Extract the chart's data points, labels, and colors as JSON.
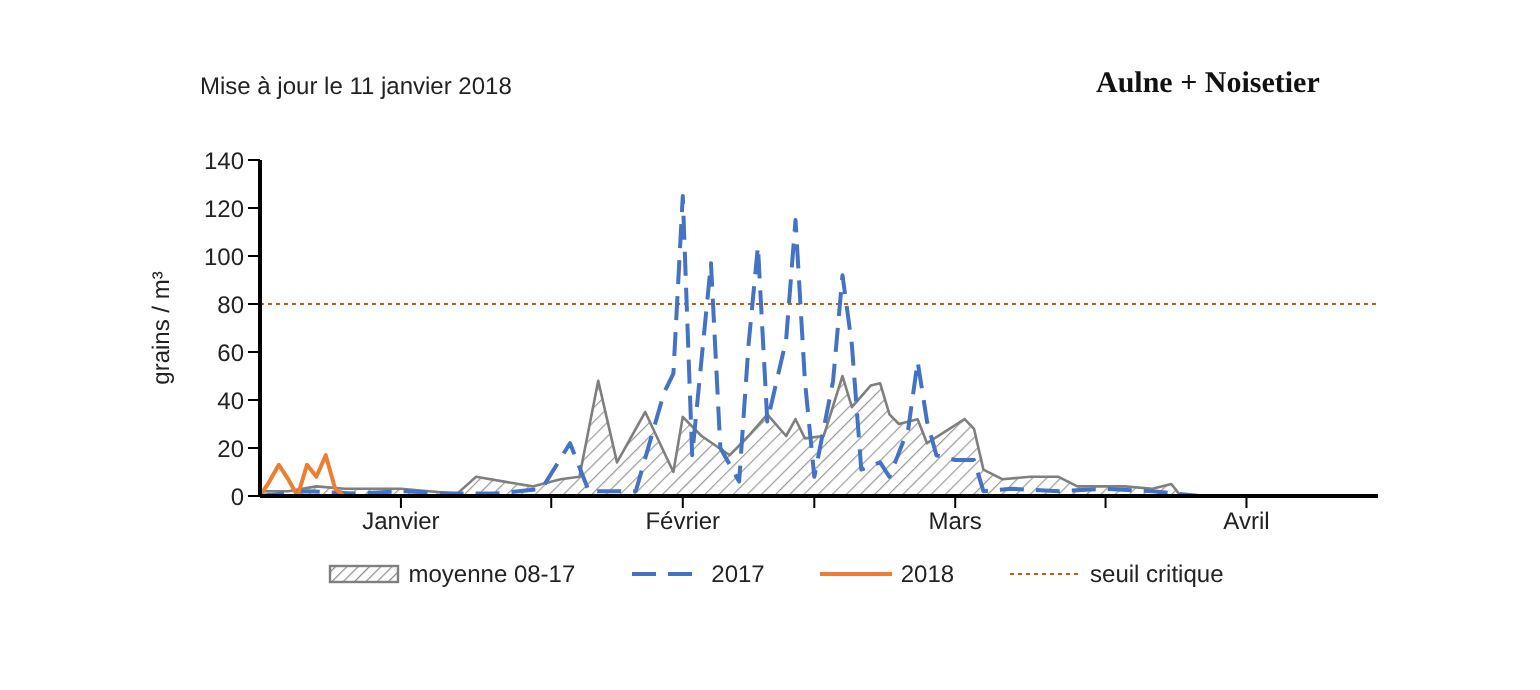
{
  "chart_data": {
    "type": "area",
    "title": "Aulne + Noisetier",
    "subtitle": "Mise à jour le 11 janvier 2018",
    "ylabel": "grains / m³",
    "xlim": [
      "--01-01",
      "--04-30"
    ],
    "xticks": [
      {
        "value": "--01-16",
        "label": "Janvier"
      },
      {
        "value": "--02-01",
        "label": null
      },
      {
        "value": "--02-15",
        "label": "Février"
      },
      {
        "value": "--03-01",
        "label": null
      },
      {
        "value": "--03-16",
        "label": "Mars"
      },
      {
        "value": "--04-01",
        "label": null
      },
      {
        "value": "--04-16",
        "label": "Avril"
      }
    ],
    "ylim": [
      0,
      140
    ],
    "yticks": [
      0,
      20,
      40,
      60,
      80,
      100,
      120,
      140
    ],
    "series": [
      {
        "name": "moyenne 08-17",
        "color": "#7f7f7f",
        "x": [
          "--01-01",
          "--01-04",
          "--01-07",
          "--01-10",
          "--01-13",
          "--01-16",
          "--01-19",
          "--01-22",
          "--01-24",
          "--01-27",
          "--01-30",
          "--02-02",
          "--02-04",
          "--02-06",
          "--02-08",
          "--02-11",
          "--02-14",
          "--02-15",
          "--02-17",
          "--02-20",
          "--02-22",
          "--02-24",
          "--02-26",
          "--02-27",
          "--02-28",
          "--03-02",
          "--03-04",
          "--03-05",
          "--03-07",
          "--03-08",
          "--03-09",
          "--03-10",
          "--03-12",
          "--03-13",
          "--03-15",
          "--03-17",
          "--03-18",
          "--03-19",
          "--03-21",
          "--03-24",
          "--03-27",
          "--03-29",
          "--04-03",
          "--04-06",
          "--04-08",
          "--04-09",
          "--04-11",
          "--04-30"
        ],
        "values": [
          2,
          2,
          4,
          3,
          3,
          3,
          2,
          1,
          8,
          6,
          4,
          7,
          8,
          48,
          14,
          35,
          10,
          33,
          25,
          17,
          25,
          34,
          25,
          32,
          24,
          25,
          50,
          37,
          46,
          47,
          34,
          30,
          32,
          22,
          27,
          32,
          28,
          11,
          7,
          8,
          8,
          4,
          4,
          3,
          5,
          0,
          0,
          0
        ]
      },
      {
        "name": "2017",
        "type": "line",
        "line_style": "dashed",
        "color": "#4472c4",
        "x": [
          "--01-01",
          "--01-06",
          "--01-11",
          "--01-16",
          "--01-21",
          "--01-26",
          "--01-31",
          "--02-03",
          "--02-05",
          "--02-10",
          "--02-13",
          "--02-14",
          "--02-15",
          "--02-16",
          "--02-18",
          "--02-19",
          "--02-21",
          "--02-22",
          "--02-23",
          "--02-24",
          "--02-25",
          "--02-26",
          "--02-27",
          "--02-28",
          "--03-01",
          "--03-03",
          "--03-04",
          "--03-05",
          "--03-06",
          "--03-08",
          "--03-09",
          "--03-11",
          "--03-12",
          "--03-13",
          "--03-14",
          "--03-16",
          "--03-18",
          "--03-19",
          "--03-22",
          "--03-27",
          "--04-01",
          "--04-06",
          "--04-11",
          "--04-30"
        ],
        "values": [
          0,
          2,
          1,
          2,
          1,
          1,
          3,
          22,
          2,
          2,
          43,
          51,
          125,
          17,
          97,
          20,
          6,
          63,
          104,
          31,
          48,
          65,
          115,
          48,
          8,
          48,
          92,
          63,
          11,
          14,
          8,
          28,
          56,
          31,
          17,
          15,
          15,
          2,
          3,
          2,
          3,
          2,
          0,
          0
        ]
      },
      {
        "name": "2018",
        "type": "line",
        "line_style": "solid",
        "color": "#ed7d31",
        "x": [
          "--01-01",
          "--01-02",
          "--01-03",
          "--01-04",
          "--01-05",
          "--01-06",
          "--01-07",
          "--01-08",
          "--01-09",
          "--01-10"
        ],
        "values": [
          0,
          6,
          13,
          7,
          0,
          13,
          8,
          17,
          3,
          0
        ]
      }
    ],
    "ref_lines": [
      {
        "axis": "y",
        "value": 80,
        "label": "seuil critique",
        "color": "#c55a11",
        "line_style": "dotted"
      }
    ],
    "legend": "bottom",
    "marker": "none"
  }
}
